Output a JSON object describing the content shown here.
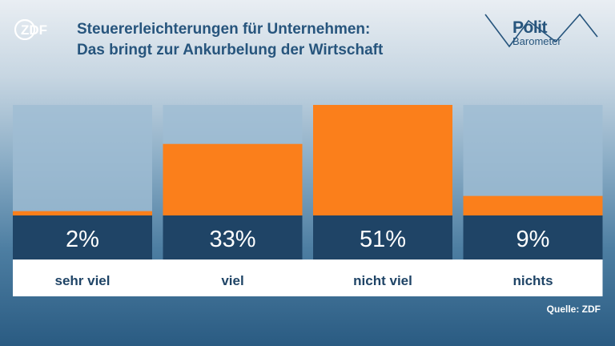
{
  "brand": {
    "logo_text": "ZDF"
  },
  "header": {
    "title_line1": "Steuererleichterungen für Unternehmen:",
    "title_line2": "Das bringt zur Ankurbelung der Wirtschaft"
  },
  "badge": {
    "line1": "Polit",
    "line2": "Barometer"
  },
  "source": "Quelle: ZDF",
  "colors": {
    "bar": "#fb7f1b",
    "track": "#9fbdd3",
    "value_band": "#1f4466",
    "label_band": "#ffffff",
    "title": "#27557d"
  },
  "chart_data": {
    "type": "bar",
    "title": "Steuererleichterungen für Unternehmen: Das bringt zur Ankurbelung der Wirtschaft",
    "categories": [
      "sehr viel",
      "viel",
      "nicht viel",
      "nichts"
    ],
    "values": [
      2,
      33,
      51,
      9
    ],
    "value_labels": [
      "2%",
      "33%",
      "51%",
      "9%"
    ],
    "unit": "%",
    "ylim": [
      0,
      51
    ],
    "legend": "none",
    "grid": false
  }
}
